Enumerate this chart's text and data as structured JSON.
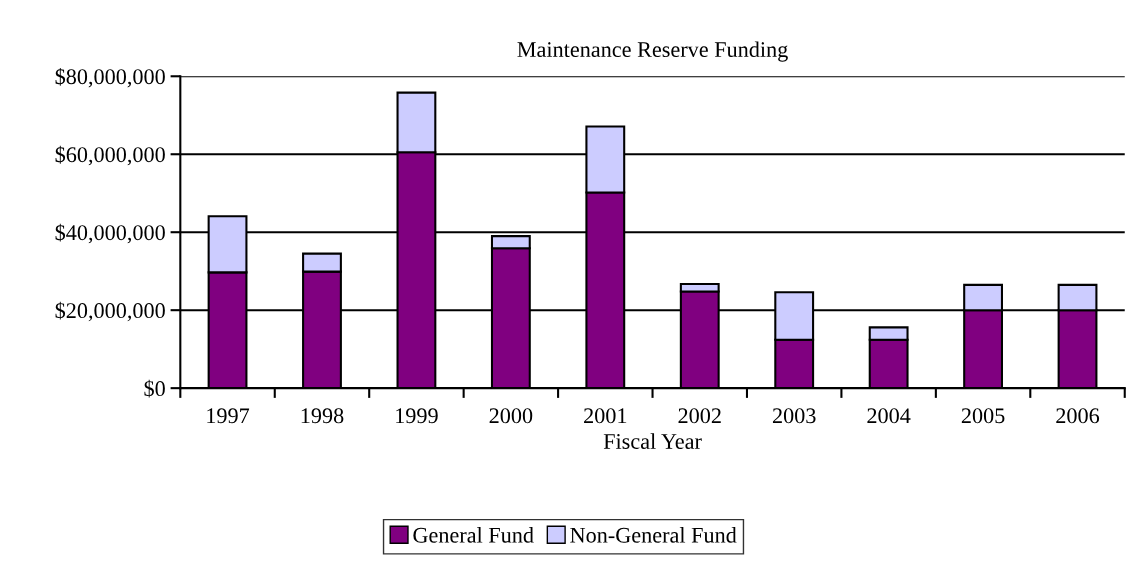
{
  "chart_data": {
    "type": "bar",
    "title": "Maintenance Reserve Funding",
    "xlabel": "Fiscal Year",
    "categories": [
      "1997",
      "1998",
      "1999",
      "2000",
      "2001",
      "2002",
      "2003",
      "2004",
      "2005",
      "2006"
    ],
    "stacked": true,
    "series": [
      {
        "name": "General Fund",
        "color": "#800080",
        "values": [
          29700000,
          29900000,
          60500000,
          35900000,
          50200000,
          24800000,
          12400000,
          12400000,
          20000000,
          20000000
        ]
      },
      {
        "name": "Non-General Fund",
        "color": "#ccccff",
        "values": [
          14400000,
          4600000,
          15300000,
          3100000,
          16900000,
          1900000,
          12200000,
          3200000,
          6500000,
          6500000
        ]
      }
    ],
    "ylim": [
      0,
      80000000
    ],
    "yticks": [
      {
        "value": 0,
        "label": "$0"
      },
      {
        "value": 20000000,
        "label": "$20,000,000"
      },
      {
        "value": 40000000,
        "label": "$40,000,000"
      },
      {
        "value": 60000000,
        "label": "$60,000,000"
      },
      {
        "value": 80000000,
        "label": "$80,000,000"
      }
    ],
    "grid": "y",
    "legend": "bottom"
  }
}
